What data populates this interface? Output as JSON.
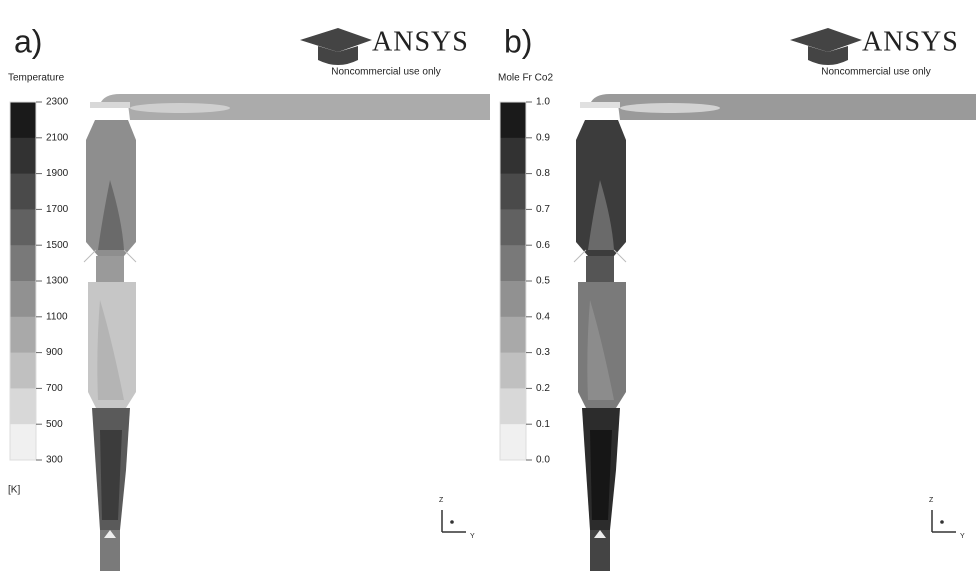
{
  "panels": [
    {
      "label": "a)",
      "legend_title": "Temperature",
      "ticks": [
        "2300",
        "2100",
        "1900",
        "1700",
        "1500",
        "1300",
        "1100",
        "900",
        "700",
        "500",
        "300"
      ],
      "unit": "[K]",
      "watermark": "ANSYS",
      "watermark_note": "Noncommercial use only",
      "axis_labels": [
        "Z",
        "Y"
      ]
    },
    {
      "label": "b)",
      "legend_title": "Mole Fr Co2",
      "ticks": [
        "1.0",
        "0.9",
        "0.8",
        "0.7",
        "0.6",
        "0.5",
        "0.4",
        "0.3",
        "0.2",
        "0.1",
        "0.0"
      ],
      "watermark": "ANSYS",
      "watermark_note": "Noncommercial use only",
      "axis_labels": [
        "Z",
        "Y"
      ]
    }
  ]
}
